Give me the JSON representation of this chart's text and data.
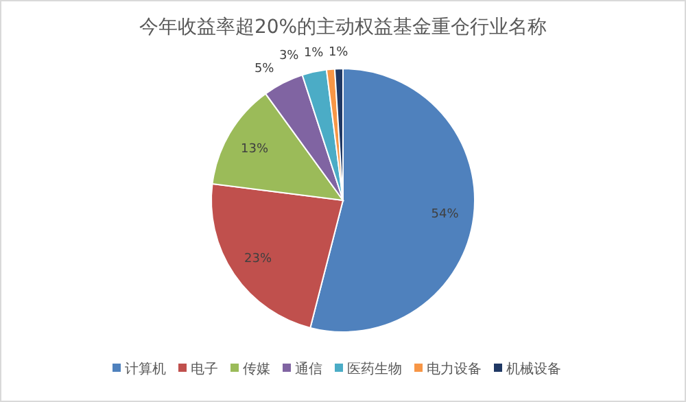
{
  "chart_data": {
    "type": "pie",
    "title": "今年收益率超20%的主动权益基金重仓行业名称",
    "categories": [
      "计算机",
      "电子",
      "传媒",
      "通信",
      "医药生物",
      "电力设备",
      "机械设备"
    ],
    "values": [
      54,
      23,
      13,
      5,
      3,
      1,
      1
    ],
    "colors": [
      "#4f81bd",
      "#c0504d",
      "#9bbb59",
      "#8064a2",
      "#4bacc6",
      "#f79646",
      "#1f3864"
    ],
    "value_labels": [
      "54%",
      "23%",
      "13%",
      "5%",
      "3%",
      "1%",
      "1%"
    ],
    "legend": "bottom"
  }
}
